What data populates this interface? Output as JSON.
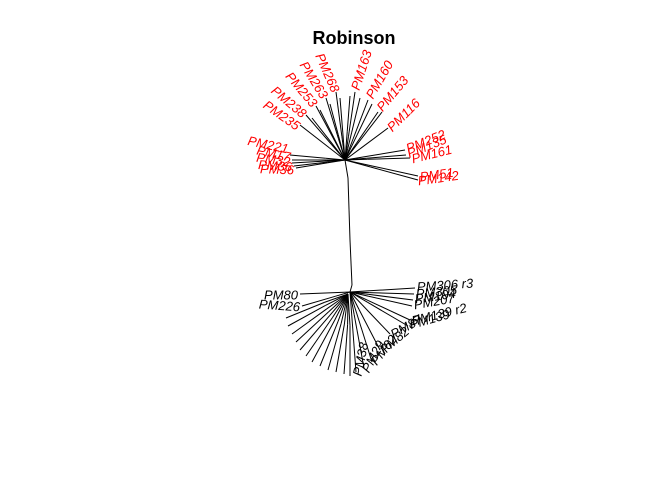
{
  "title": "Robinson",
  "colors": {
    "top_cluster": "#ff0000",
    "bottom_cluster": "#000000",
    "branch": "#000000"
  },
  "top_leaves": [
    "PM51",
    "PM142",
    "PM252",
    "PM135",
    "PM161",
    "PM116",
    "PM153",
    "PM160",
    "PM163",
    "PM221",
    "PM17",
    "PM32",
    "PM36",
    "PM235",
    "PM238",
    "PM253",
    "PM263",
    "PM268",
    "PM36"
  ],
  "bottom_leaves": [
    "PM306 r3",
    "PM305",
    "PM104",
    "PM207",
    "PM139 r2",
    "PM139",
    "PM87",
    "PM82",
    "PM62",
    "PM29",
    "PM38",
    "PM80",
    "PM226"
  ]
}
